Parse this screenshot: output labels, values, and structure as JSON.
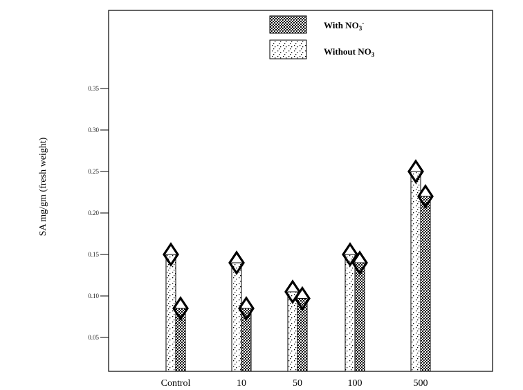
{
  "chart_data": {
    "type": "bar",
    "title": "",
    "xlabel": "",
    "ylabel": "SA mg/gm (fresh weight)",
    "categories": [
      "Control",
      "10",
      "50",
      "100",
      "500"
    ],
    "series": [
      {
        "name": "Without NO3",
        "pattern": "dots",
        "values": [
          0.15,
          0.14,
          0.105,
          0.15,
          0.25
        ]
      },
      {
        "name": "With NO3-",
        "pattern": "crosshatch",
        "values": [
          0.085,
          0.085,
          0.097,
          0.14,
          0.22
        ]
      }
    ],
    "yticks": [
      "0.05",
      "0.10",
      "0.15",
      "0.20",
      "0.25",
      "0.30",
      "0.35"
    ],
    "ylim": [
      0.01,
      0.45
    ],
    "grid": false,
    "legend": {
      "position": "top-center",
      "entries": [
        {
          "label": "With NO",
          "sub": "3",
          "sup": "-"
        },
        {
          "label": "Without NO",
          "sub": "3",
          "sup": ""
        }
      ]
    },
    "marker": "diamond",
    "colors": {
      "ink": "#000000",
      "background": "#ffffff"
    }
  }
}
